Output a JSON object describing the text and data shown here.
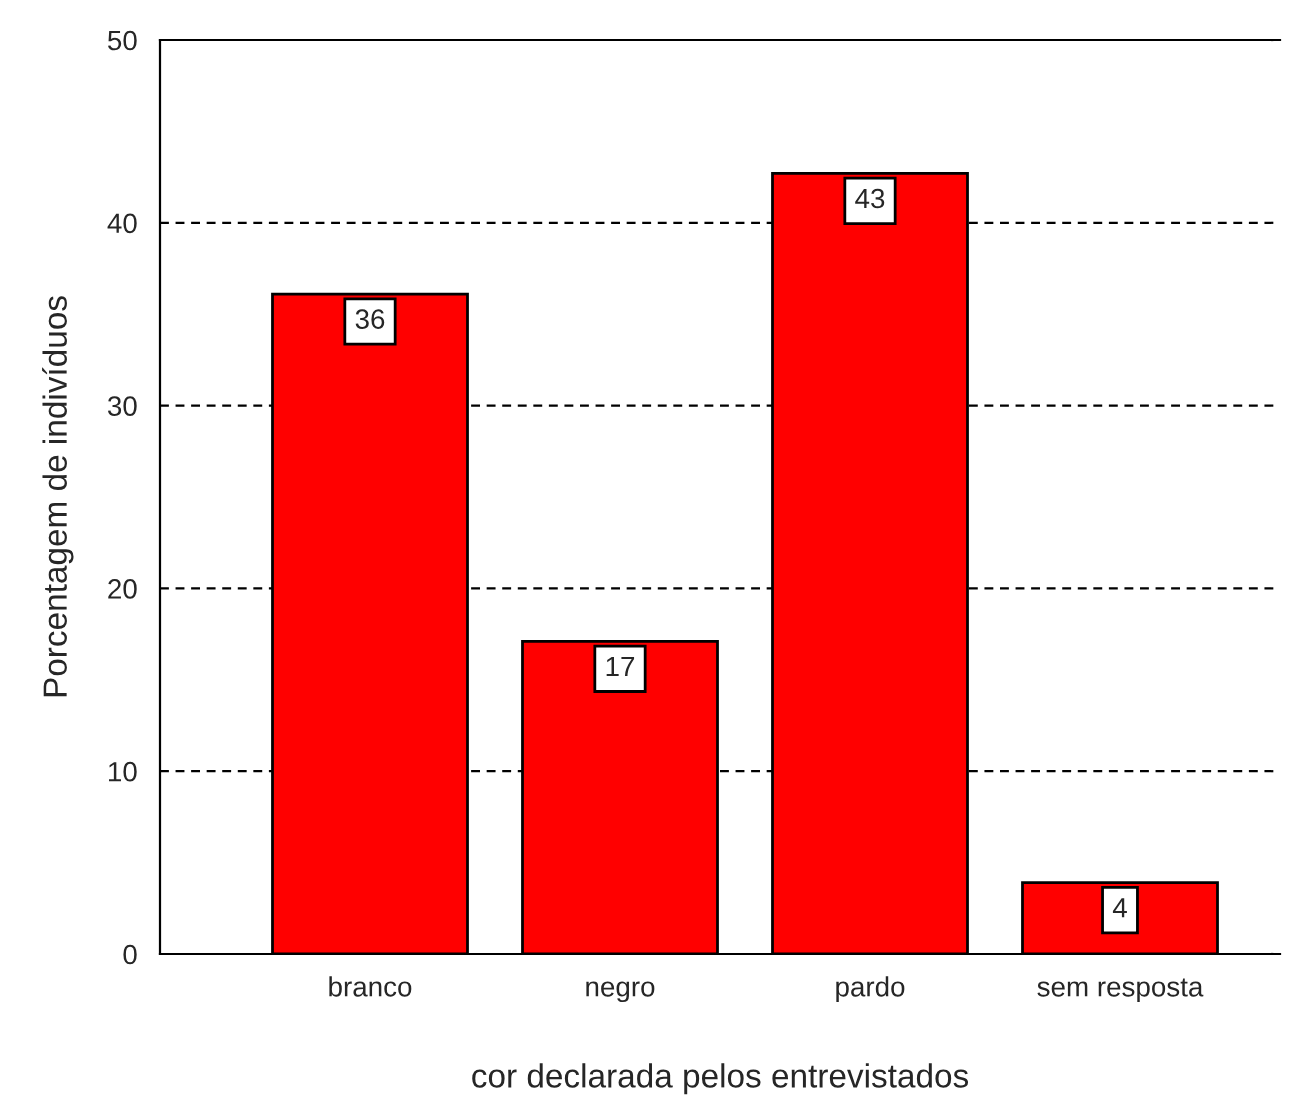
{
  "chart_data": {
    "type": "bar",
    "xlabel": "cor declarada pelos entrevistados",
    "ylabel": "Porcentagem de indivíduos",
    "categories": [
      "branco",
      "negro",
      "pardo",
      "sem resposta"
    ],
    "values": [
      36.1,
      17.1,
      42.7,
      3.9
    ],
    "value_labels": [
      "36",
      "17",
      "43",
      "4"
    ],
    "color": "#ff0000",
    "ylim": [
      0,
      50
    ],
    "yticks": [
      0,
      10,
      20,
      30,
      40,
      50
    ],
    "grid": "y"
  }
}
